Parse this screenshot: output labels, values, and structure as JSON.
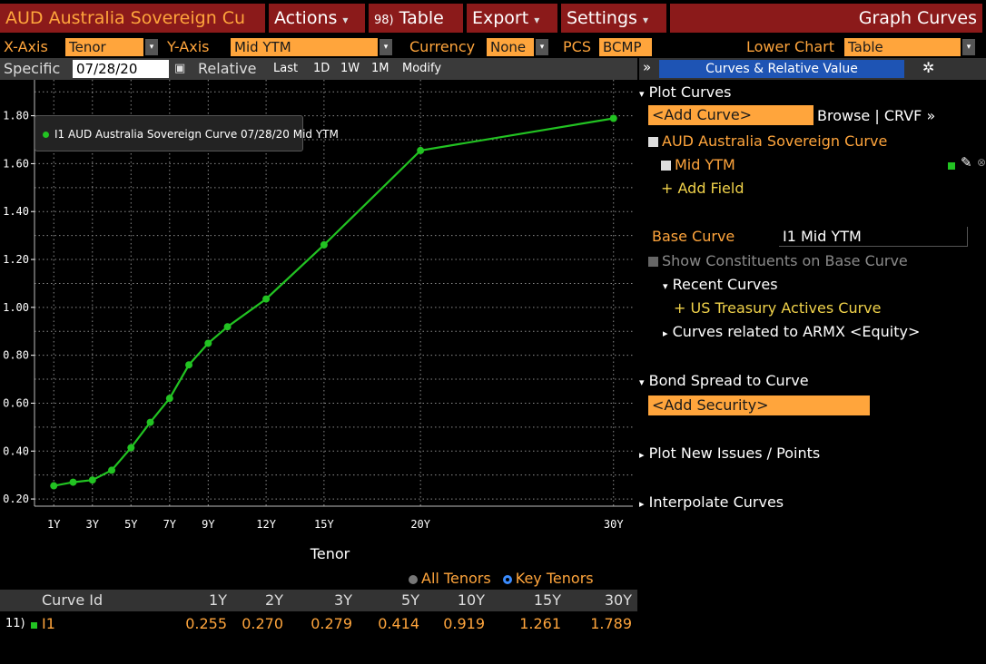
{
  "topbar": {
    "title": "AUD Australia Sovereign Cu",
    "actions": "Actions",
    "table_num": "98)",
    "table": "Table",
    "export": "Export",
    "settings": "Settings",
    "graph_curves": "Graph Curves"
  },
  "axisrow": {
    "xaxis_label": "X-Axis",
    "xaxis_value": "Tenor",
    "yaxis_label": "Y-Axis",
    "yaxis_value": "Mid YTM",
    "currency_label": "Currency",
    "currency_value": "None",
    "pcs_label": "PCS",
    "pcs_value": "BCMP",
    "lower_chart_label": "Lower Chart",
    "lower_chart_value": "Table"
  },
  "specrow": {
    "specific_label": "Specific",
    "date": "07/28/20",
    "relative": "Relative",
    "last": "Last",
    "b1d": "1D",
    "b1w": "1W",
    "b1m": "1M",
    "modify": "Modify"
  },
  "chart_data": {
    "type": "line",
    "title": "",
    "xlabel": "Tenor",
    "ylabel": "",
    "xlim": [
      0.0,
      31.0
    ],
    "ylim": [
      0.17,
      1.95
    ],
    "yticks": [
      0.2,
      0.4,
      0.6,
      0.8,
      1.0,
      1.2,
      1.4,
      1.6,
      1.8
    ],
    "ytick_labels": [
      "0.20",
      "0.40",
      "0.60",
      "0.80",
      "1.00",
      "1.20",
      "1.40",
      "1.60",
      "1.80"
    ],
    "xticks": [
      1,
      3,
      5,
      7,
      9,
      12,
      15,
      20,
      30
    ],
    "xtick_labels": [
      "1Y",
      "3Y",
      "5Y",
      "7Y",
      "9Y",
      "12Y",
      "15Y",
      "20Y",
      "30Y"
    ],
    "grid": true,
    "legend_position": "top-left",
    "series": [
      {
        "name": "I1 AUD Australia Sovereign Curve 07/28/20 Mid YTM",
        "color": "#22c322",
        "x": [
          1,
          2,
          3,
          4,
          5,
          6,
          7,
          8,
          9,
          10,
          12,
          15,
          20,
          30
        ],
        "y": [
          0.255,
          0.27,
          0.279,
          0.32,
          0.414,
          0.52,
          0.62,
          0.76,
          0.85,
          0.919,
          1.035,
          1.261,
          1.655,
          1.789
        ]
      }
    ]
  },
  "tenor_toggle": {
    "all": "All Tenors",
    "key": "Key Tenors"
  },
  "table": {
    "headers": [
      "Curve Id",
      "1Y",
      "2Y",
      "3Y",
      "5Y",
      "10Y",
      "15Y",
      "30Y"
    ],
    "row_num": "11)",
    "row_id": "I1",
    "row_values": [
      "0.255",
      "0.270",
      "0.279",
      "0.414",
      "0.919",
      "1.261",
      "1.789"
    ]
  },
  "rpanel": {
    "collapse": "»",
    "tab_title": "Curves & Relative Value",
    "plot_curves": "Plot Curves",
    "add_curve": "<Add Curve>",
    "browse": "Browse | CRVF »",
    "curve_name": "AUD Australia Sovereign Curve",
    "mid_ytm": "Mid YTM",
    "add_field": "+ Add Field",
    "base_curve_label": "Base Curve",
    "base_curve_value": "I1 Mid YTM",
    "show_constituents": "Show Constituents on Base Curve",
    "recent_curves": "Recent Curves",
    "us_treasury": "+ US Treasury Actives Curve",
    "related_curves": "Curves related to ARMX <Equity>",
    "bond_spread": "Bond Spread to Curve",
    "add_security": "<Add Security>",
    "plot_new_issues": "Plot New Issues / Points",
    "interpolate": "Interpolate Curves"
  },
  "colors": {
    "series": "#22c322",
    "orange": "#ffa53c",
    "title_bg": "#8b1a1a",
    "tab_blue": "#1e54b4"
  }
}
